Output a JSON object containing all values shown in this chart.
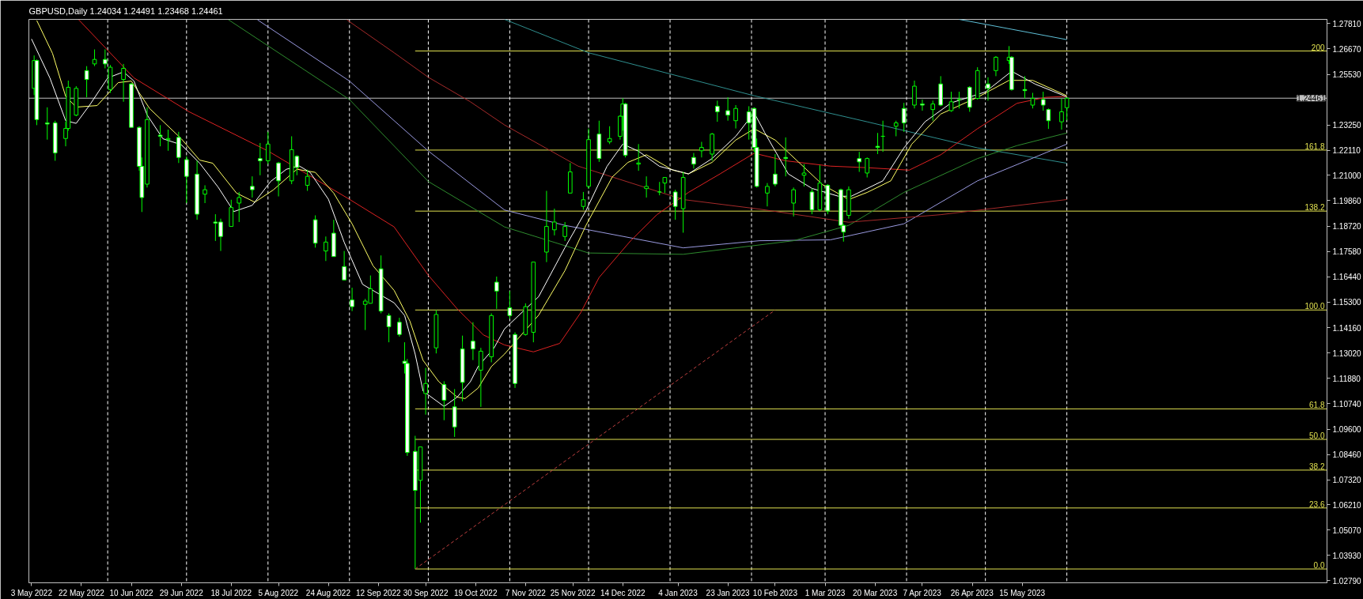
{
  "chart_data": {
    "type": "candlestick",
    "title": "GBPUSD,Daily 1.24034 1.24491 1.23468 1.24461",
    "color": "#00ff00",
    "x": [
      "2022-05-04",
      "2022-05-05",
      "2022-05-09",
      "2022-05-12",
      "2022-05-16",
      "2022-05-17",
      "2022-05-20",
      "2022-05-24",
      "2022-05-27",
      "2022-05-31",
      "2022-06-02",
      "2022-06-07",
      "2022-06-10",
      "2022-06-13",
      "2022-06-14",
      "2022-06-16",
      "2022-06-21",
      "2022-06-24",
      "2022-06-28",
      "2022-07-01",
      "2022-07-05",
      "2022-07-08",
      "2022-07-12",
      "2022-07-14",
      "2022-07-18",
      "2022-07-21",
      "2022-07-26",
      "2022-07-29",
      "2022-08-01",
      "2022-08-05",
      "2022-08-10",
      "2022-08-12",
      "2022-08-16",
      "2022-08-19",
      "2022-08-23",
      "2022-08-26",
      "2022-08-30",
      "2022-09-02",
      "2022-09-07",
      "2022-09-09",
      "2022-09-13",
      "2022-09-16",
      "2022-09-20",
      "2022-09-22",
      "2022-09-23",
      "2022-09-26",
      "2022-09-28",
      "2022-09-30",
      "2022-10-04",
      "2022-10-07",
      "2022-10-11",
      "2022-10-14",
      "2022-10-18",
      "2022-10-21",
      "2022-10-25",
      "2022-10-27",
      "2022-11-01",
      "2022-11-03",
      "2022-11-07",
      "2022-11-10",
      "2022-11-15",
      "2022-11-18",
      "2022-11-22",
      "2022-11-24",
      "2022-11-29",
      "2022-12-01",
      "2022-12-05",
      "2022-12-09",
      "2022-12-13",
      "2022-12-14",
      "2022-12-15",
      "2022-12-20",
      "2022-12-23",
      "2022-12-28",
      "2022-12-30",
      "2023-01-03",
      "2023-01-06",
      "2023-01-10",
      "2023-01-13",
      "2023-01-17",
      "2023-01-19",
      "2023-01-23",
      "2023-01-26",
      "2023-01-31",
      "2023-02-02",
      "2023-02-03",
      "2023-02-07",
      "2023-02-10",
      "2023-02-14",
      "2023-02-17",
      "2023-02-21",
      "2023-02-24",
      "2023-02-27",
      "2023-03-02",
      "2023-03-07",
      "2023-03-08",
      "2023-03-10",
      "2023-03-14",
      "2023-03-17",
      "2023-03-21",
      "2023-03-23",
      "2023-03-28",
      "2023-03-31",
      "2023-04-04",
      "2023-04-07",
      "2023-04-11",
      "2023-04-14",
      "2023-04-18",
      "2023-04-21",
      "2023-04-25",
      "2023-04-28",
      "2023-05-02",
      "2023-05-05",
      "2023-05-10",
      "2023-05-11",
      "2023-05-16",
      "2023-05-19",
      "2023-05-23",
      "2023-05-25",
      "2023-05-30",
      "2023-06-01"
    ],
    "ohlc": [
      [
        1.249,
        1.2638,
        1.246,
        1.2615
      ],
      [
        1.2615,
        1.262,
        1.2325,
        1.235
      ],
      [
        1.2335,
        1.2405,
        1.226,
        1.233
      ],
      [
        1.2335,
        1.2345,
        1.2165,
        1.22
      ],
      [
        1.2265,
        1.234,
        1.223,
        1.231
      ],
      [
        1.231,
        1.2525,
        1.23,
        1.2495
      ],
      [
        1.237,
        1.25,
        1.2365,
        1.249
      ],
      [
        1.257,
        1.259,
        1.245,
        1.253
      ],
      [
        1.26,
        1.2665,
        1.259,
        1.262
      ],
      [
        1.262,
        1.2665,
        1.258,
        1.26
      ],
      [
        1.2485,
        1.2595,
        1.247,
        1.2585
      ],
      [
        1.253,
        1.26,
        1.243,
        1.258
      ],
      [
        1.251,
        1.2515,
        1.2315,
        1.2315
      ],
      [
        1.2315,
        1.232,
        1.212,
        1.214
      ],
      [
        1.214,
        1.218,
        1.1935,
        1.2
      ],
      [
        1.206,
        1.2405,
        1.2045,
        1.235
      ],
      [
        1.228,
        1.2325,
        1.223,
        1.2275
      ],
      [
        1.226,
        1.2305,
        1.221,
        1.2265
      ],
      [
        1.227,
        1.2295,
        1.2155,
        1.218
      ],
      [
        1.217,
        1.2185,
        1.1975,
        1.2095
      ],
      [
        1.2105,
        1.2165,
        1.19,
        1.1925
      ],
      [
        1.2015,
        1.2055,
        1.1975,
        1.2035
      ],
      [
        1.189,
        1.1925,
        1.1805,
        1.1885
      ],
      [
        1.189,
        1.1905,
        1.176,
        1.1825
      ],
      [
        1.187,
        1.199,
        1.187,
        1.1955
      ],
      [
        1.1975,
        1.2025,
        1.189,
        1.2
      ],
      [
        1.205,
        1.2095,
        1.2,
        1.2035
      ],
      [
        1.2175,
        1.2245,
        1.21,
        1.2165
      ],
      [
        1.2165,
        1.2295,
        1.215,
        1.224
      ],
      [
        1.2155,
        1.216,
        1.2005,
        1.2075
      ],
      [
        1.2075,
        1.2275,
        1.206,
        1.2215
      ],
      [
        1.2185,
        1.219,
        1.21,
        1.2135
      ],
      [
        1.2055,
        1.2125,
        1.203,
        1.2095
      ],
      [
        1.19,
        1.192,
        1.1775,
        1.1795
      ],
      [
        1.176,
        1.1825,
        1.1715,
        1.18
      ],
      [
        1.184,
        1.19,
        1.1735,
        1.1735
      ],
      [
        1.169,
        1.176,
        1.163,
        1.163
      ],
      [
        1.154,
        1.1595,
        1.149,
        1.151
      ],
      [
        1.152,
        1.1545,
        1.1405,
        1.1535
      ],
      [
        1.1525,
        1.165,
        1.1525,
        1.159
      ],
      [
        1.168,
        1.174,
        1.148,
        1.149
      ],
      [
        1.147,
        1.148,
        1.135,
        1.142
      ],
      [
        1.144,
        1.146,
        1.1375,
        1.1385
      ],
      [
        1.1265,
        1.135,
        1.121,
        1.1255
      ],
      [
        1.1255,
        1.1275,
        1.084,
        1.0855
      ],
      [
        1.086,
        1.093,
        1.0332,
        1.0685
      ],
      [
        1.073,
        1.088,
        1.054,
        1.088
      ],
      [
        1.112,
        1.1235,
        1.1025,
        1.1165
      ],
      [
        1.1325,
        1.1495,
        1.13,
        1.1475
      ],
      [
        1.116,
        1.1175,
        1.1,
        1.109
      ],
      [
        1.106,
        1.114,
        1.0925,
        1.097
      ],
      [
        1.132,
        1.138,
        1.1085,
        1.117
      ],
      [
        1.1355,
        1.144,
        1.127,
        1.132
      ],
      [
        1.1225,
        1.1325,
        1.106,
        1.131
      ],
      [
        1.1285,
        1.148,
        1.126,
        1.147
      ],
      [
        1.162,
        1.1645,
        1.15,
        1.158
      ],
      [
        1.1505,
        1.158,
        1.1455,
        1.147
      ],
      [
        1.1385,
        1.1395,
        1.1145,
        1.1165
      ],
      [
        1.1385,
        1.1525,
        1.138,
        1.151
      ],
      [
        1.1395,
        1.171,
        1.135,
        1.171
      ],
      [
        1.1755,
        1.203,
        1.171,
        1.187
      ],
      [
        1.1855,
        1.195,
        1.183,
        1.189
      ],
      [
        1.1825,
        1.189,
        1.1805,
        1.187
      ],
      [
        1.202,
        1.2155,
        1.202,
        1.2115
      ],
      [
        1.196,
        1.2025,
        1.1945,
        1.199
      ],
      [
        1.205,
        1.231,
        1.204,
        1.226
      ],
      [
        1.2285,
        1.2345,
        1.216,
        1.2175
      ],
      [
        1.225,
        1.232,
        1.224,
        1.2265
      ],
      [
        1.2275,
        1.237,
        1.226,
        1.2365
      ],
      [
        1.2365,
        1.2446,
        1.23,
        1.242
      ],
      [
        1.242,
        1.2425,
        1.218,
        1.219
      ],
      [
        1.215,
        1.224,
        1.212,
        1.2155
      ],
      [
        1.204,
        1.2095,
        1.2,
        1.205
      ],
      [
        1.2025,
        1.207,
        1.201,
        1.2025
      ],
      [
        1.2065,
        1.209,
        1.202,
        1.209
      ],
      [
        1.2025,
        1.2035,
        1.19,
        1.196
      ],
      [
        1.195,
        1.2115,
        1.1842,
        1.209
      ],
      [
        1.218,
        1.22,
        1.213,
        1.215
      ],
      [
        1.221,
        1.225,
        1.218,
        1.2225
      ],
      [
        1.2195,
        1.229,
        1.2165,
        1.2285
      ],
      [
        1.241,
        1.2435,
        1.234,
        1.2385
      ],
      [
        1.239,
        1.245,
        1.2345,
        1.237
      ],
      [
        1.2345,
        1.2415,
        1.231,
        1.24
      ],
      [
        1.2385,
        1.241,
        1.226,
        1.2335
      ],
      [
        1.24,
        1.2405,
        1.2205,
        1.2225
      ],
      [
        1.2225,
        1.2265,
        1.2045,
        1.205
      ],
      [
        1.202,
        1.2065,
        1.196,
        1.205
      ],
      [
        1.2105,
        1.2195,
        1.205,
        1.206
      ],
      [
        1.218,
        1.227,
        1.2095,
        1.2175
      ],
      [
        1.1975,
        1.2045,
        1.1915,
        1.2035
      ],
      [
        1.21,
        1.215,
        1.205,
        1.211
      ],
      [
        1.2025,
        1.204,
        1.1925,
        1.1945
      ],
      [
        1.1945,
        1.2145,
        1.194,
        1.2065
      ],
      [
        1.2055,
        1.206,
        1.1925,
        1.194
      ],
      [
        1.2035,
        1.204,
        1.186,
        1.1875
      ],
      [
        1.1875,
        1.188,
        1.1802,
        1.1845
      ],
      [
        1.192,
        1.205,
        1.1905,
        1.2035
      ],
      [
        1.2175,
        1.2205,
        1.2115,
        1.216
      ],
      [
        1.211,
        1.218,
        1.209,
        1.2175
      ],
      [
        1.223,
        1.229,
        1.2195,
        1.2225
      ],
      [
        1.2275,
        1.2345,
        1.2205,
        1.2275
      ],
      [
        1.232,
        1.2345,
        1.2275,
        1.2335
      ],
      [
        1.24,
        1.2425,
        1.2295,
        1.2335
      ],
      [
        1.2415,
        1.2525,
        1.24,
        1.25
      ],
      [
        1.242,
        1.244,
        1.239,
        1.2415
      ],
      [
        1.2395,
        1.2435,
        1.2345,
        1.242
      ],
      [
        1.251,
        1.2545,
        1.241,
        1.2415
      ],
      [
        1.239,
        1.2475,
        1.2385,
        1.243
      ],
      [
        1.244,
        1.2475,
        1.24,
        1.244
      ],
      [
        1.2495,
        1.25,
        1.2385,
        1.2405
      ],
      [
        1.2445,
        1.2585,
        1.244,
        1.257
      ],
      [
        1.251,
        1.254,
        1.2435,
        1.249
      ],
      [
        1.257,
        1.2635,
        1.2545,
        1.263
      ],
      [
        1.2615,
        1.268,
        1.26,
        1.263
      ],
      [
        1.263,
        1.2635,
        1.248,
        1.2485
      ],
      [
        1.2485,
        1.2545,
        1.2445,
        1.248
      ],
      [
        1.2415,
        1.247,
        1.24,
        1.2445
      ],
      [
        1.244,
        1.2475,
        1.239,
        1.2415
      ],
      [
        1.2395,
        1.24,
        1.2308,
        1.2345
      ],
      [
        1.234,
        1.2445,
        1.2305,
        1.2385
      ],
      [
        1.24034,
        1.24491,
        1.23468,
        1.24461
      ]
    ],
    "series": [
      {
        "type": "line",
        "name": "200",
        "color": "#e0e050",
        "x": [
          "2022-09-26",
          "2023-09-08"
        ],
        "values": [
          1.2658,
          1.2658
        ]
      },
      {
        "type": "line",
        "name": "161.8",
        "color": "#e0e050",
        "x": [
          "2022-09-26",
          "2023-09-08"
        ],
        "values": [
          1.2213,
          1.2213
        ]
      },
      {
        "type": "line",
        "name": "138.2",
        "color": "#e0e050",
        "x": [
          "2022-09-26",
          "2023-09-08"
        ],
        "values": [
          1.1939,
          1.1939
        ]
      },
      {
        "type": "line",
        "name": "100.0",
        "color": "#e0e050",
        "x": [
          "2022-09-26",
          "2023-09-08"
        ],
        "values": [
          1.1495,
          1.1495
        ]
      },
      {
        "type": "line",
        "name": "61.8",
        "color": "#e0e050",
        "x": [
          "2022-09-26",
          "2023-09-08"
        ],
        "values": [
          1.1051,
          1.1051
        ]
      },
      {
        "type": "line",
        "name": "50.0",
        "color": "#e0e050",
        "x": [
          "2022-09-26",
          "2023-09-08"
        ],
        "values": [
          1.0914,
          1.0914
        ]
      },
      {
        "type": "line",
        "name": "38.2",
        "color": "#e0e050",
        "x": [
          "2022-09-26",
          "2023-09-08"
        ],
        "values": [
          1.0776,
          1.0776
        ]
      },
      {
        "type": "line",
        "name": "23.6",
        "color": "#e0e050",
        "x": [
          "2022-09-26",
          "2023-09-08"
        ],
        "values": [
          1.0606,
          1.0606
        ]
      },
      {
        "type": "line",
        "name": "0.0",
        "color": "#e0e050",
        "x": [
          "2022-09-26",
          "2023-09-08"
        ],
        "values": [
          1.0332,
          1.0332
        ]
      },
      {
        "type": "line",
        "color": "#c04040",
        "line_style": "dashed",
        "x": [
          "2022-09-26",
          "2023-02-10"
        ],
        "values": [
          1.0332,
          1.1495
        ]
      },
      {
        "type": "line",
        "color": "#5fc0d8",
        "x": [
          "2023-04-21",
          "2023-06-01"
        ],
        "values": [
          1.28,
          1.2709
        ]
      },
      {
        "type": "line",
        "color": "#2f8f8f",
        "x": [
          "2022-10-30",
          "2022-12-01",
          "2023-02-02",
          "2023-03-17",
          "2023-04-28",
          "2023-06-01"
        ],
        "values": [
          1.28,
          1.265,
          1.2457,
          1.234,
          1.2223,
          1.2154
        ]
      },
      {
        "type": "line",
        "color": "#9a9ae0",
        "x": [
          "2022-07-28",
          "2022-09-01",
          "2022-10-01",
          "2022-10-30",
          "2022-11-22",
          "2023-01-06",
          "2023-02-04",
          "2023-03-03",
          "2023-03-31",
          "2023-04-28",
          "2023-06-01"
        ],
        "values": [
          1.2798,
          1.2523,
          1.2209,
          1.1944,
          1.1875,
          1.1774,
          1.1806,
          1.181,
          1.1882,
          1.2075,
          1.224
        ]
      },
      {
        "type": "line",
        "color": "#2e8b2e",
        "x": [
          "2022-07-17",
          "2022-09-01",
          "2022-10-01",
          "2022-10-30",
          "2022-12-01",
          "2023-01-06",
          "2023-02-17",
          "2023-03-10",
          "2023-03-31",
          "2023-04-28",
          "2023-05-13",
          "2023-06-01"
        ],
        "values": [
          1.2798,
          1.244,
          1.2072,
          1.1868,
          1.1751,
          1.1745,
          1.1806,
          1.1875,
          1.2023,
          1.2175,
          1.2233,
          1.229
        ]
      },
      {
        "type": "line",
        "color": "#a52a2a",
        "x": [
          "2022-08-31",
          "2022-09-18",
          "2022-10-01",
          "2022-10-17",
          "2022-10-30",
          "2022-11-27",
          "2023-01-06",
          "2023-02-04",
          "2023-03-10",
          "2023-04-14",
          "2023-06-01"
        ],
        "values": [
          1.2798,
          1.265,
          1.254,
          1.243,
          1.2326,
          1.2141,
          1.1991,
          1.1948,
          1.1889,
          1.1923,
          1.1991
        ]
      },
      {
        "type": "line",
        "color": "#dd2222",
        "x": [
          "2022-05-21",
          "2022-06-11",
          "2022-07-02",
          "2022-08-01",
          "2022-09-01",
          "2022-09-18",
          "2022-10-01",
          "2022-10-12",
          "2022-10-22",
          "2022-10-30",
          "2022-11-10",
          "2022-11-20",
          "2022-11-28",
          "2022-12-05",
          "2022-12-17",
          "2022-12-27",
          "2023-01-08",
          "2023-01-20",
          "2023-02-02",
          "2023-02-14",
          "2023-03-03",
          "2023-03-17",
          "2023-04-02",
          "2023-04-14",
          "2023-04-28",
          "2023-05-13",
          "2023-05-24",
          "2023-06-01"
        ],
        "values": [
          1.2798,
          1.2537,
          1.2385,
          1.2209,
          1.1992,
          1.1868,
          1.1651,
          1.15,
          1.1383,
          1.1338,
          1.1307,
          1.1345,
          1.1483,
          1.1641,
          1.1806,
          1.1923,
          1.2023,
          1.2106,
          1.2199,
          1.2165,
          1.2141,
          1.2134,
          1.2123,
          1.2192,
          1.2309,
          1.2423,
          1.245,
          1.2454
        ]
      },
      {
        "type": "line",
        "color": "#ffff66",
        "x": [
          "2022-05-05",
          "2022-05-11",
          "2022-05-16",
          "2022-05-20",
          "2022-05-28",
          "2022-06-05",
          "2022-06-10",
          "2022-06-17",
          "2022-06-29",
          "2022-07-06",
          "2022-07-11",
          "2022-07-20",
          "2022-07-27",
          "2022-08-03",
          "2022-08-12",
          "2022-08-19",
          "2022-08-26",
          "2022-09-02",
          "2022-09-10",
          "2022-09-18",
          "2022-09-24",
          "2022-09-29",
          "2022-10-05",
          "2022-10-12",
          "2022-10-15",
          "2022-10-20",
          "2022-10-25",
          "2022-10-30",
          "2022-11-12",
          "2022-11-22",
          "2022-11-30",
          "2022-12-10",
          "2022-12-16",
          "2022-12-23",
          "2023-01-02",
          "2023-01-08",
          "2023-01-17",
          "2023-01-26",
          "2023-02-02",
          "2023-02-10",
          "2023-02-19",
          "2023-02-28",
          "2023-03-10",
          "2023-03-17",
          "2023-03-26",
          "2023-04-03",
          "2023-04-14",
          "2023-04-28",
          "2023-05-10",
          "2023-05-19",
          "2023-06-01"
        ],
        "values": [
          1.2795,
          1.2647,
          1.2454,
          1.2406,
          1.2413,
          1.2516,
          1.2523,
          1.2399,
          1.2264,
          1.2168,
          1.2154,
          1.202,
          1.1979,
          1.2034,
          1.2127,
          1.2113,
          1.202,
          1.1882,
          1.1693,
          1.1583,
          1.1445,
          1.1269,
          1.1173,
          1.1104,
          1.1097,
          1.1145,
          1.1241,
          1.1297,
          1.1472,
          1.1672,
          1.1875,
          1.2092,
          1.2158,
          1.2192,
          1.2123,
          1.2106,
          1.2158,
          1.2258,
          1.2309,
          1.2258,
          1.2158,
          1.2058,
          1.1991,
          1.2023,
          1.2075,
          1.224,
          1.2375,
          1.245,
          1.2526,
          1.2526,
          1.2457
        ]
      },
      {
        "type": "line",
        "color": "#ffffff",
        "x": [
          "2022-05-03",
          "2022-05-10",
          "2022-05-16",
          "2022-05-20",
          "2022-05-25",
          "2022-06-01",
          "2022-06-07",
          "2022-06-11",
          "2022-06-16",
          "2022-06-22",
          "2022-06-29",
          "2022-07-06",
          "2022-07-13",
          "2022-07-19",
          "2022-07-26",
          "2022-08-02",
          "2022-08-08",
          "2022-08-13",
          "2022-08-17",
          "2022-08-24",
          "2022-08-30",
          "2022-09-06",
          "2022-09-18",
          "2022-09-22",
          "2022-09-26",
          "2022-09-29",
          "2022-10-07",
          "2022-10-12",
          "2022-10-17",
          "2022-10-20",
          "2022-10-26",
          "2022-10-30",
          "2022-11-12",
          "2022-11-22",
          "2022-11-30",
          "2022-12-08",
          "2022-12-14",
          "2022-12-20",
          "2022-12-28",
          "2023-01-08",
          "2023-01-17",
          "2023-01-26",
          "2023-02-02",
          "2023-02-06",
          "2023-02-15",
          "2023-02-24",
          "2023-03-06",
          "2023-03-11",
          "2023-03-23",
          "2023-03-31",
          "2023-04-08",
          "2023-04-18",
          "2023-05-01",
          "2023-05-11",
          "2023-05-20",
          "2023-06-01"
        ],
        "values": [
          1.2712,
          1.2537,
          1.2345,
          1.2333,
          1.2413,
          1.2537,
          1.2564,
          1.2523,
          1.2371,
          1.2264,
          1.2237,
          1.2154,
          1.2047,
          1.1937,
          1.1965,
          1.2072,
          1.2127,
          1.2141,
          1.2113,
          1.1992,
          1.1799,
          1.161,
          1.1527,
          1.147,
          1.1297,
          1.1131,
          1.1062,
          1.1104,
          1.1173,
          1.1242,
          1.1324,
          1.141,
          1.1555,
          1.1775,
          1.1941,
          1.214,
          1.224,
          1.2208,
          1.214,
          1.2106,
          1.2175,
          1.2275,
          1.2381,
          1.2292,
          1.2106,
          1.2041,
          1.2006,
          1.2006,
          1.2075,
          1.2223,
          1.234,
          1.2425,
          1.2474,
          1.2567,
          1.2509,
          1.2452
        ]
      }
    ],
    "ref_lines": [
      {
        "axis": "y",
        "value": 1.24461,
        "label": "1.24461",
        "color": "#c0c0c0"
      },
      {
        "axis": "x",
        "value": "2022-06-01",
        "color": "#ffffff",
        "line_style": "dashed"
      },
      {
        "axis": "x",
        "value": "2022-07-01",
        "color": "#ffffff",
        "line_style": "dashed"
      },
      {
        "axis": "x",
        "value": "2022-08-01",
        "color": "#ffffff",
        "line_style": "dashed"
      },
      {
        "axis": "x",
        "value": "2022-09-01",
        "color": "#ffffff",
        "line_style": "dashed"
      },
      {
        "axis": "x",
        "value": "2022-10-01",
        "color": "#ffffff",
        "line_style": "dashed"
      },
      {
        "axis": "x",
        "value": "2022-11-01",
        "color": "#ffffff",
        "line_style": "dashed"
      },
      {
        "axis": "x",
        "value": "2022-12-01",
        "color": "#ffffff",
        "line_style": "dashed"
      },
      {
        "axis": "x",
        "value": "2023-01-01",
        "color": "#ffffff",
        "line_style": "dashed"
      },
      {
        "axis": "x",
        "value": "2023-02-01",
        "color": "#ffffff",
        "line_style": "dashed"
      },
      {
        "axis": "x",
        "value": "2023-03-01",
        "color": "#ffffff",
        "line_style": "dashed"
      },
      {
        "axis": "x",
        "value": "2023-04-01",
        "color": "#ffffff",
        "line_style": "dashed"
      },
      {
        "axis": "x",
        "value": "2023-05-01",
        "color": "#ffffff",
        "line_style": "dashed"
      },
      {
        "axis": "x",
        "value": "2023-06-01",
        "color": "#ffffff",
        "line_style": "dashed"
      }
    ],
    "xlim": [
      "2022-05-02",
      "2023-09-08"
    ],
    "xticks": [
      {
        "value": "2022-05-03",
        "label": "3 May 2022"
      },
      {
        "value": "2022-05-22",
        "label": "22 May 2022"
      },
      {
        "value": "2022-06-10",
        "label": "10 Jun 2022"
      },
      {
        "value": "2022-06-29",
        "label": "29 Jun 2022"
      },
      {
        "value": "2022-07-18",
        "label": "18 Jul 2022"
      },
      {
        "value": "2022-08-05",
        "label": "5 Aug 2022"
      },
      {
        "value": "2022-08-24",
        "label": "24 Aug 2022"
      },
      {
        "value": "2022-09-12",
        "label": "12 Sep 2022"
      },
      {
        "value": "2022-09-30",
        "label": "30 Sep 2022"
      },
      {
        "value": "2022-10-19",
        "label": "19 Oct 2022"
      },
      {
        "value": "2022-11-07",
        "label": "7 Nov 2022"
      },
      {
        "value": "2022-11-25",
        "label": "25 Nov 2022"
      },
      {
        "value": "2022-12-14",
        "label": "14 Dec 2022"
      },
      {
        "value": "2023-01-04",
        "label": "4 Jan 2023"
      },
      {
        "value": "2023-01-23",
        "label": "23 Jan 2023"
      },
      {
        "value": "2023-02-10",
        "label": "10 Feb 2023"
      },
      {
        "value": "2023-03-01",
        "label": "1 Mar 2023"
      },
      {
        "value": "2023-03-20",
        "label": "20 Mar 2023"
      },
      {
        "value": "2023-04-07",
        "label": "7 Apr 2023"
      },
      {
        "value": "2023-04-26",
        "label": "26 Apr 2023"
      },
      {
        "value": "2023-05-15",
        "label": "15 May 2023"
      }
    ],
    "ylim": [
      1.027,
      1.28
    ],
    "yticks": [
      {
        "value": 1.2781,
        "label": "1.27810"
      },
      {
        "value": 1.2667,
        "label": "1.26670"
      },
      {
        "value": 1.2553,
        "label": "1.25530"
      },
      {
        "value": 1.2325,
        "label": "1.23250"
      },
      {
        "value": 1.2211,
        "label": "1.22110"
      },
      {
        "value": 1.21,
        "label": "1.21000"
      },
      {
        "value": 1.1986,
        "label": "1.19860"
      },
      {
        "value": 1.1872,
        "label": "1.18720"
      },
      {
        "value": 1.1758,
        "label": "1.17580"
      },
      {
        "value": 1.1644,
        "label": "1.16440"
      },
      {
        "value": 1.153,
        "label": "1.15300"
      },
      {
        "value": 1.1416,
        "label": "1.14160"
      },
      {
        "value": 1.1302,
        "label": "1.13020"
      },
      {
        "value": 1.1188,
        "label": "1.11880"
      },
      {
        "value": 1.1074,
        "label": "1.10740"
      },
      {
        "value": 1.096,
        "label": "1.09600"
      },
      {
        "value": 1.0846,
        "label": "1.08460"
      },
      {
        "value": 1.0732,
        "label": "1.07320"
      },
      {
        "value": 1.0621,
        "label": "1.06210"
      },
      {
        "value": 1.0507,
        "label": "1.05070"
      },
      {
        "value": 1.0393,
        "label": "1.03930"
      },
      {
        "value": 1.0279,
        "label": "1.02790"
      }
    ]
  }
}
